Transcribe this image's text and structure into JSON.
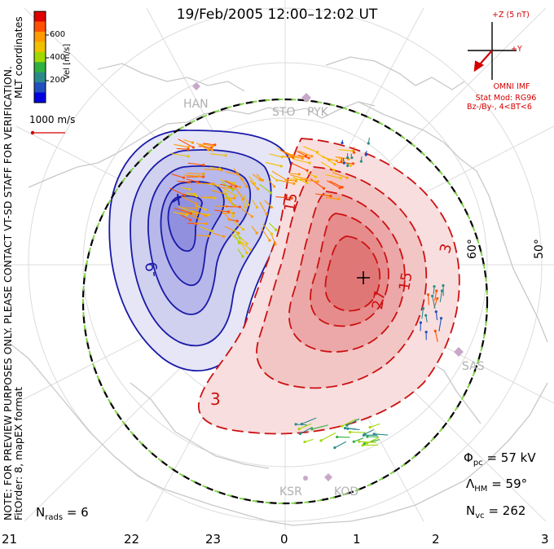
{
  "title": "19/Feb/2005 12:00–12:02 UT",
  "side_note": "NOTE: FOR PREVIEW PURPOSES ONLY. PLEASE CONTACT VT-SD STAFF FOR VERIFICATION.",
  "fit_info": "FitOrder: 8, mapEX format",
  "coords_label": "MLT coordinates",
  "vel_scale": {
    "title": "Vel [m/s]",
    "ticks": [
      "600",
      "400",
      "200"
    ],
    "colors": [
      "#e00000",
      "#ff5000",
      "#ff9a00",
      "#f0c000",
      "#a0d800",
      "#30b040",
      "#2a8a8a",
      "#2050c0",
      "#0000e0"
    ]
  },
  "ref_vector": {
    "label": "1000 m/s"
  },
  "imf": {
    "bz_label": "+Z (5 nT)",
    "by_label": "+Y",
    "source": "OMNI IMF",
    "model": "Stat Mod: RG96",
    "condition": "Bz-/By-, 4<BT<6"
  },
  "mlt_labels": [
    "21",
    "22",
    "23",
    "0",
    "1",
    "2",
    "3"
  ],
  "lat_labels": [
    "60°",
    "50°"
  ],
  "stations": [
    "HAN",
    "STO",
    "PYK",
    "SAS",
    "KSR",
    "KOD"
  ],
  "contours": {
    "neg_labels": [
      "-9"
    ],
    "pos_labels": [
      "15",
      "27",
      "15",
      "3",
      "3"
    ]
  },
  "stats": {
    "phi_pc_symbol": "Φ",
    "phi_pc_sub": "pc",
    "phi_pc_value": "= 57 kV",
    "lambda_symbol": "Λ",
    "lambda_sub": "HM",
    "lambda_value": "= 59°",
    "nvc_symbol": "N",
    "nvc_sub": "vc",
    "nvc_value": "= 262",
    "nrads_symbol": "N",
    "nrads_sub": "rads",
    "nrads_value": "= 6"
  },
  "colors": {
    "negative_cell": "#1a1aa8",
    "positive_cell": "#cc1111",
    "coastline": "#c8c8c8",
    "grid": "#d8d8d8",
    "imf": "#d40000"
  }
}
